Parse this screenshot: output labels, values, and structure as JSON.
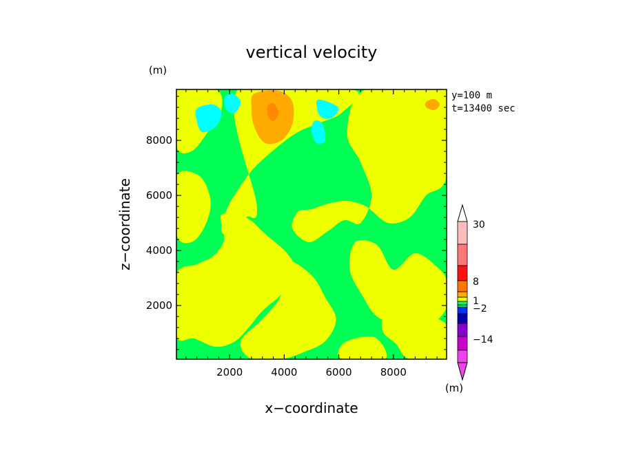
{
  "chart_data": {
    "type": "heatmap",
    "title": "vertical velocity",
    "xlabel": "x−coordinate",
    "ylabel": "z−coordinate",
    "x_unit": "(m)",
    "y_unit": "(m)",
    "annotation_lines": [
      "y=100  m",
      "t=13400 sec"
    ],
    "xlim": [
      50,
      9950
    ],
    "ylim": [
      50,
      9850
    ],
    "x_ticks": [
      2000,
      4000,
      6000,
      8000
    ],
    "y_ticks": [
      2000,
      4000,
      6000,
      8000
    ],
    "x_tick_labels": [
      "2000",
      "4000",
      "6000",
      "8000"
    ],
    "y_tick_labels": [
      "2000",
      "4000",
      "6000",
      "8000"
    ],
    "background_color": "#00ff55",
    "regions": [
      {
        "level": "weak-positive",
        "color": "#eeff00",
        "points": [
          [
            50,
            9850
          ],
          [
            1500,
            9850
          ],
          [
            1700,
            9100
          ],
          [
            1200,
            8300
          ],
          [
            600,
            7600
          ],
          [
            50,
            7800
          ]
        ]
      },
      {
        "level": "weak-positive",
        "color": "#eeff00",
        "points": [
          [
            2300,
            9850
          ],
          [
            6500,
            9850
          ],
          [
            6100,
            9000
          ],
          [
            5200,
            8600
          ],
          [
            4500,
            8300
          ],
          [
            3800,
            7800
          ],
          [
            2900,
            7000
          ],
          [
            2300,
            6200
          ],
          [
            1900,
            5500
          ],
          [
            1700,
            4700
          ],
          [
            2200,
            4500
          ],
          [
            2600,
            5200
          ],
          [
            3000,
            5600
          ]
        ]
      },
      {
        "level": "weak-positive",
        "color": "#eeff00",
        "points": [
          [
            7000,
            9850
          ],
          [
            9950,
            9850
          ],
          [
            9950,
            6700
          ],
          [
            9200,
            6000
          ],
          [
            8600,
            5200
          ],
          [
            7800,
            5000
          ],
          [
            7000,
            5600
          ],
          [
            6300,
            5800
          ],
          [
            5600,
            5700
          ],
          [
            5000,
            5500
          ],
          [
            4500,
            5400
          ],
          [
            4300,
            4800
          ],
          [
            4900,
            4300
          ],
          [
            5600,
            4700
          ],
          [
            6200,
            5100
          ],
          [
            6800,
            5000
          ],
          [
            7200,
            6000
          ],
          [
            6800,
            7200
          ],
          [
            6300,
            8300
          ]
        ]
      },
      {
        "level": "weak-positive",
        "color": "#eeff00",
        "points": [
          [
            50,
            6700
          ],
          [
            900,
            6700
          ],
          [
            1300,
            5800
          ],
          [
            1100,
            4900
          ],
          [
            600,
            4300
          ],
          [
            50,
            4600
          ]
        ]
      },
      {
        "level": "weak-positive",
        "color": "#eeff00",
        "points": [
          [
            1700,
            5300
          ],
          [
            2600,
            5200
          ],
          [
            3300,
            4600
          ],
          [
            4100,
            3900
          ],
          [
            4500,
            3100
          ],
          [
            3900,
            2400
          ],
          [
            3200,
            1800
          ],
          [
            2700,
            1200
          ],
          [
            2200,
            700
          ],
          [
            1500,
            500
          ],
          [
            700,
            800
          ],
          [
            50,
            900
          ],
          [
            50,
            3100
          ],
          [
            800,
            3500
          ],
          [
            1400,
            3800
          ],
          [
            1800,
            4400
          ]
        ]
      },
      {
        "level": "weak-positive",
        "color": "#eeff00",
        "points": [
          [
            4100,
            3600
          ],
          [
            5000,
            3100
          ],
          [
            5500,
            2300
          ],
          [
            5900,
            1500
          ],
          [
            5500,
            700
          ],
          [
            4700,
            300
          ],
          [
            3900,
            50
          ],
          [
            2800,
            50
          ],
          [
            2400,
            700
          ],
          [
            3200,
            1500
          ],
          [
            3900,
            2400
          ]
        ]
      },
      {
        "level": "weak-positive",
        "color": "#eeff00",
        "points": [
          [
            6600,
            4300
          ],
          [
            7400,
            4200
          ],
          [
            8000,
            3300
          ],
          [
            8800,
            3900
          ],
          [
            9600,
            3400
          ],
          [
            9950,
            2900
          ],
          [
            9950,
            1900
          ],
          [
            9100,
            1100
          ],
          [
            8300,
            1200
          ],
          [
            7400,
            1600
          ],
          [
            6900,
            2300
          ],
          [
            6400,
            3300
          ]
        ]
      },
      {
        "level": "weak-positive",
        "color": "#eeff00",
        "points": [
          [
            7800,
            1900
          ],
          [
            8800,
            1700
          ],
          [
            9950,
            1300
          ],
          [
            9950,
            50
          ],
          [
            8600,
            50
          ],
          [
            8100,
            600
          ],
          [
            7600,
            1100
          ]
        ]
      },
      {
        "level": "weak-positive",
        "color": "#eeff00",
        "points": [
          [
            6200,
            650
          ],
          [
            7300,
            850
          ],
          [
            7700,
            50
          ],
          [
            6100,
            50
          ]
        ]
      },
      {
        "level": "positive-1",
        "color": "#ffaa00",
        "points": [
          [
            2900,
            9700
          ],
          [
            3800,
            9800
          ],
          [
            4300,
            9400
          ],
          [
            4300,
            8600
          ],
          [
            3900,
            8000
          ],
          [
            3300,
            7900
          ],
          [
            2900,
            8500
          ],
          [
            2800,
            9200
          ]
        ]
      },
      {
        "level": "positive-2",
        "color": "#ff8800",
        "points": [
          [
            3400,
            9250
          ],
          [
            3600,
            9350
          ],
          [
            3800,
            9000
          ],
          [
            3600,
            8700
          ],
          [
            3400,
            8900
          ]
        ]
      },
      {
        "level": "positive-1",
        "color": "#ffaa00",
        "points": [
          [
            9200,
            9400
          ],
          [
            9500,
            9500
          ],
          [
            9700,
            9300
          ],
          [
            9500,
            9100
          ],
          [
            9200,
            9200
          ]
        ]
      },
      {
        "level": "weak-negative",
        "color": "#00ffff",
        "points": [
          [
            800,
            9150
          ],
          [
            1400,
            9300
          ],
          [
            1700,
            9000
          ],
          [
            1500,
            8500
          ],
          [
            1000,
            8300
          ],
          [
            800,
            8700
          ]
        ]
      },
      {
        "level": "weak-negative",
        "color": "#00ffff",
        "points": [
          [
            1800,
            9500
          ],
          [
            2100,
            9700
          ],
          [
            2400,
            9400
          ],
          [
            2200,
            9000
          ],
          [
            1900,
            9100
          ]
        ]
      },
      {
        "level": "weak-negative",
        "color": "#00ffff",
        "points": [
          [
            5200,
            9450
          ],
          [
            5600,
            9400
          ],
          [
            6000,
            9150
          ],
          [
            5700,
            8800
          ],
          [
            5300,
            8900
          ]
        ]
      },
      {
        "level": "weak-negative",
        "color": "#00ffff",
        "points": [
          [
            5100,
            8700
          ],
          [
            5400,
            8600
          ],
          [
            5500,
            8000
          ],
          [
            5200,
            7900
          ],
          [
            5000,
            8300
          ]
        ]
      }
    ],
    "colorbar": {
      "labels": [
        "30",
        "8",
        "1",
        "−2",
        "−14"
      ],
      "unit": "(m)",
      "segment_colors": [
        "#ffffff",
        "#ffbbbb",
        "#ff7777",
        "#ff1111",
        "#ff7700",
        "#ffaa00",
        "#eeff00",
        "#00ff55",
        "#00cc88",
        "#0033ff",
        "#0000aa",
        "#8800cc",
        "#cc00cc",
        "#ee44ee"
      ]
    }
  }
}
